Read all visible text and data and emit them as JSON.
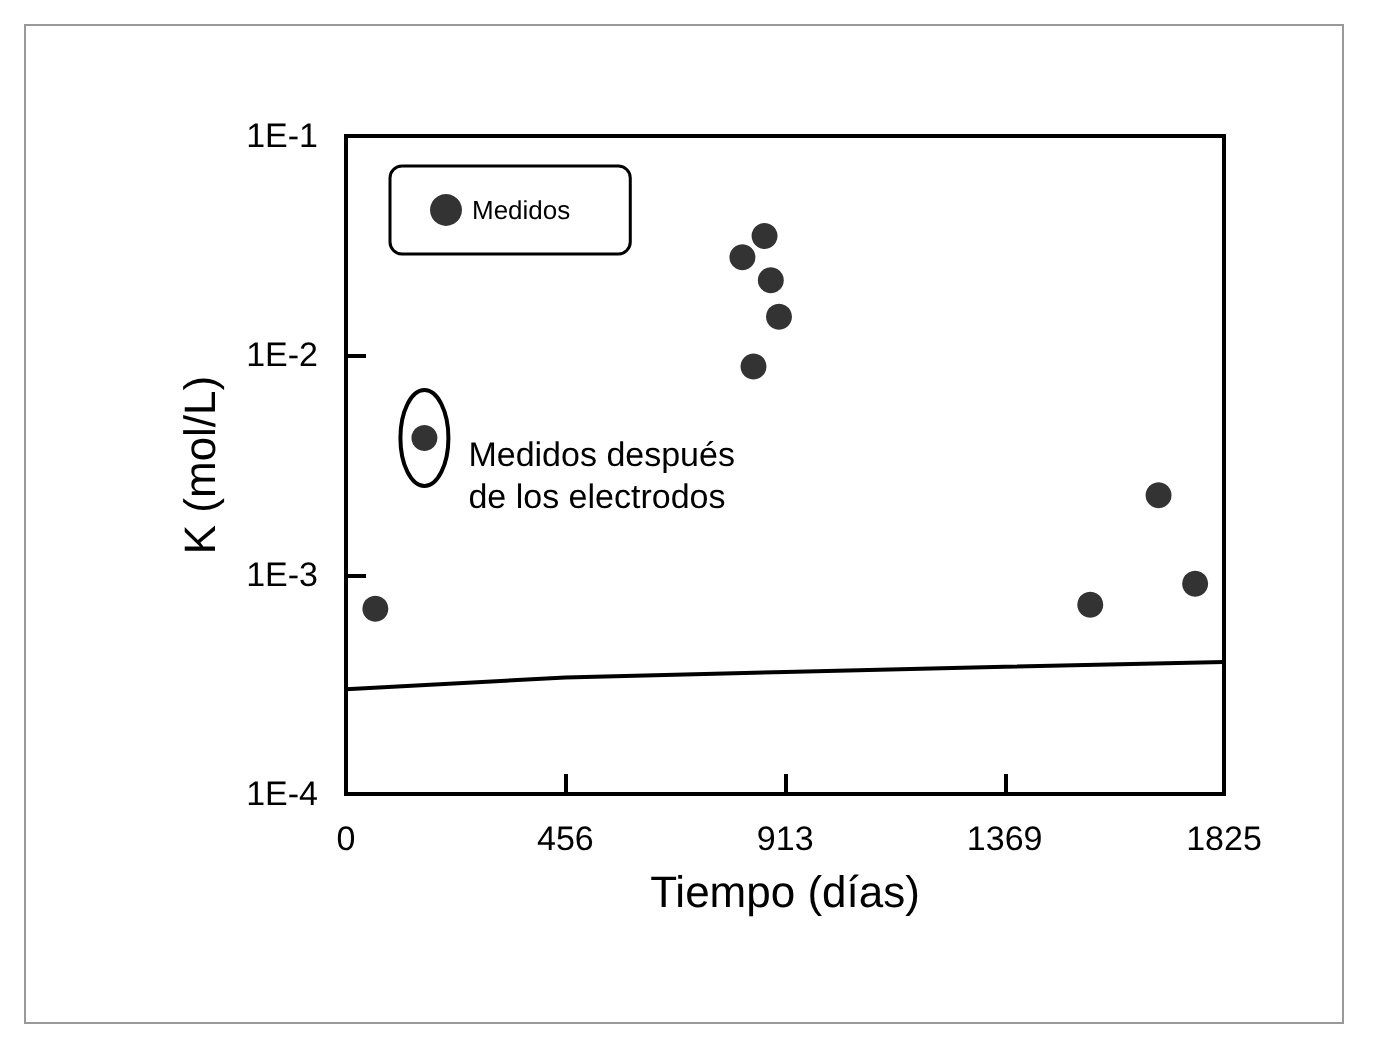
{
  "chart_data": {
    "type": "scatter",
    "xlabel": "Tiempo (días)",
    "ylabel": "K (mol/L)",
    "log": "y",
    "xlim": [
      0,
      1825
    ],
    "xticks": [
      0,
      456,
      913,
      1369,
      1825
    ],
    "ylim": [
      0.0001,
      0.1
    ],
    "yticks": [
      {
        "value": 0.0001,
        "label": "1E-4"
      },
      {
        "value": 0.001,
        "label": "1E-3"
      },
      {
        "value": 0.01,
        "label": "1E-2"
      },
      {
        "value": 0.1,
        "label": "1E-1"
      }
    ],
    "grid": false,
    "legend": "top left",
    "marker": "circle",
    "series": [
      {
        "type": "line",
        "marker": "none",
        "color": "#000000",
        "x": [
          0,
          456,
          913,
          1369,
          1825
        ],
        "values": [
          0.0003,
          0.00034,
          0.00036,
          0.00038,
          0.0004
        ]
      },
      {
        "name": "Medidos",
        "color": "#000000",
        "x": [
          61,
          163,
          824,
          847,
          870,
          883,
          900,
          1547,
          1689,
          1765
        ],
        "values": [
          0.0007,
          0.0042,
          0.028,
          0.0089,
          0.035,
          0.022,
          0.015,
          0.00073,
          0.0023,
          0.00091
        ]
      }
    ],
    "annotations": [
      {
        "text": "Medidos después\nde los electrodos",
        "x": 163,
        "y": 0.0042
      }
    ]
  }
}
